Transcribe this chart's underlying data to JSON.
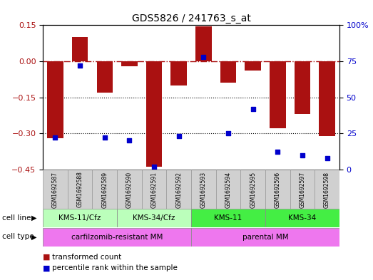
{
  "title": "GDS5826 / 241763_s_at",
  "samples": [
    "GSM1692587",
    "GSM1692588",
    "GSM1692589",
    "GSM1692590",
    "GSM1692591",
    "GSM1692592",
    "GSM1692593",
    "GSM1692594",
    "GSM1692595",
    "GSM1692596",
    "GSM1692597",
    "GSM1692598"
  ],
  "bar_values": [
    -0.32,
    0.1,
    -0.13,
    -0.02,
    -0.44,
    -0.1,
    0.145,
    -0.09,
    -0.04,
    -0.28,
    -0.22,
    -0.31
  ],
  "dot_values_pct": [
    22,
    72,
    22,
    20,
    2,
    23,
    78,
    25,
    42,
    12,
    10,
    8
  ],
  "bar_color": "#aa1111",
  "dot_color": "#0000cc",
  "ylim_left": [
    -0.45,
    0.15
  ],
  "ylim_right": [
    0,
    100
  ],
  "yticks_left": [
    0.15,
    0.0,
    -0.15,
    -0.3,
    -0.45
  ],
  "yticks_right": [
    100,
    75,
    50,
    25,
    0
  ],
  "dotted_lines": [
    -0.15,
    -0.3
  ],
  "cl_groups": [
    {
      "label": "KMS-11/Cfz",
      "start": 0,
      "end": 3,
      "color": "#bbffbb"
    },
    {
      "label": "KMS-34/Cfz",
      "start": 3,
      "end": 6,
      "color": "#bbffbb"
    },
    {
      "label": "KMS-11",
      "start": 6,
      "end": 9,
      "color": "#44ee44"
    },
    {
      "label": "KMS-34",
      "start": 9,
      "end": 12,
      "color": "#44ee44"
    }
  ],
  "ct_groups": [
    {
      "label": "carfilzomib-resistant MM",
      "start": 0,
      "end": 6,
      "color": "#ee77ee"
    },
    {
      "label": "parental MM",
      "start": 6,
      "end": 12,
      "color": "#ee77ee"
    }
  ],
  "cell_line_label": "cell line",
  "cell_type_label": "cell type",
  "legend_items": [
    {
      "color": "#aa1111",
      "label": "transformed count"
    },
    {
      "color": "#0000cc",
      "label": "percentile rank within the sample"
    }
  ],
  "bar_width": 0.65
}
